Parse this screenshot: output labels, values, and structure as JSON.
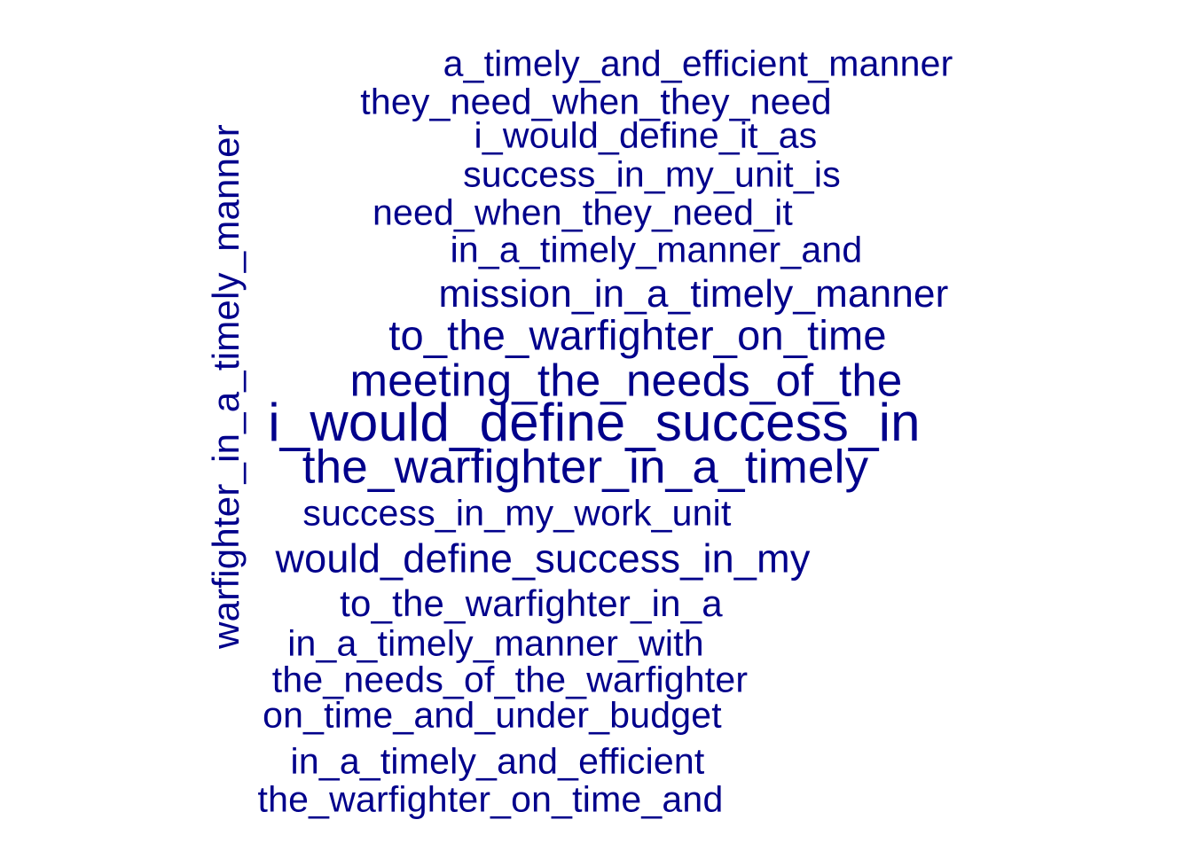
{
  "words": [
    {
      "text": "a_timely_and_efficient_manner",
      "weight": 2
    },
    {
      "text": "they_need_when_they_need",
      "weight": 2
    },
    {
      "text": "i_would_define_it_as",
      "weight": 2
    },
    {
      "text": "success_in_my_unit_is",
      "weight": 2
    },
    {
      "text": "need_when_they_need_it",
      "weight": 2
    },
    {
      "text": "in_a_timely_manner_and",
      "weight": 2
    },
    {
      "text": "mission_in_a_timely_manner",
      "weight": 3
    },
    {
      "text": "to_the_warfighter_on_time",
      "weight": 3
    },
    {
      "text": "meeting_the_needs_of_the",
      "weight": 4
    },
    {
      "text": "i_would_define_success_in",
      "weight": 5
    },
    {
      "text": "the_warfighter_in_a_timely",
      "weight": 4
    },
    {
      "text": "success_in_my_work_unit",
      "weight": 2
    },
    {
      "text": "would_define_success_in_my",
      "weight": 3
    },
    {
      "text": "to_the_warfighter_in_a",
      "weight": 2
    },
    {
      "text": "in_a_timely_manner_with",
      "weight": 2
    },
    {
      "text": "the_needs_of_the_warfighter",
      "weight": 2
    },
    {
      "text": "on_time_and_under_budget",
      "weight": 2
    },
    {
      "text": "in_a_timely_and_efficient",
      "weight": 2
    },
    {
      "text": "the_warfighter_on_time_and",
      "weight": 2
    },
    {
      "text": "warfighter_in_a_timely_manner",
      "weight": 3
    }
  ],
  "color": "#00008B"
}
